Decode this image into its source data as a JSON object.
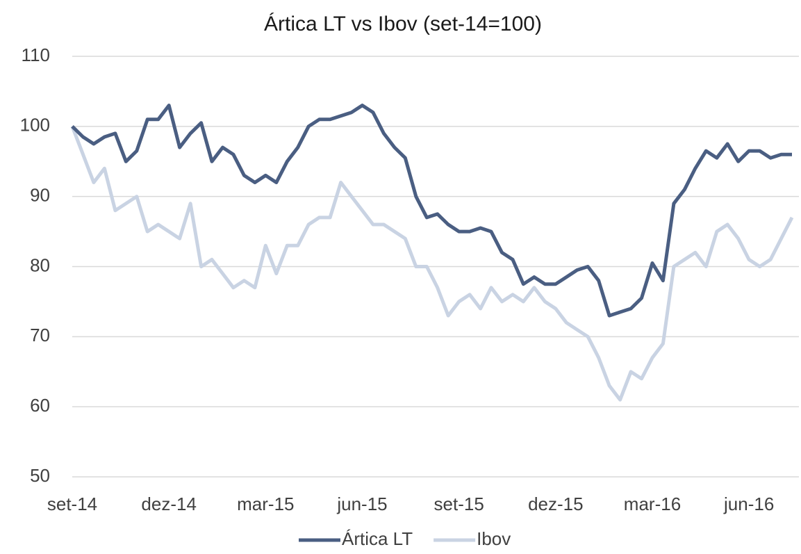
{
  "chart_data": {
    "type": "line",
    "title": "Ártica LT vs Ibov (set-14=100)",
    "categories": [
      "set-14",
      null,
      null,
      null,
      null,
      null,
      null,
      null,
      null,
      "dez-14",
      null,
      null,
      null,
      null,
      null,
      null,
      null,
      null,
      "mar-15",
      null,
      null,
      null,
      null,
      null,
      null,
      null,
      null,
      "jun-15",
      null,
      null,
      null,
      null,
      null,
      null,
      null,
      null,
      "set-15",
      null,
      null,
      null,
      null,
      null,
      null,
      null,
      null,
      "dez-15",
      null,
      null,
      null,
      null,
      null,
      null,
      null,
      null,
      "mar-16",
      null,
      null,
      null,
      null,
      null,
      null,
      null,
      null,
      "jun-16",
      null,
      null,
      null,
      null
    ],
    "series": [
      {
        "name": "Ártica LT",
        "color": "#4a5e82",
        "values": [
          100,
          98.5,
          97.5,
          98.5,
          99,
          95,
          96.5,
          101,
          101,
          103,
          97,
          99,
          100.5,
          95,
          97,
          96,
          93,
          92,
          93,
          92,
          95,
          97,
          100,
          101,
          101,
          101.5,
          102,
          103,
          102,
          99,
          97,
          95.5,
          90,
          87,
          87.5,
          86,
          85,
          85,
          85.5,
          85,
          82,
          81,
          77.5,
          78.5,
          77.5,
          77.5,
          78.5,
          79.5,
          80,
          78,
          73,
          73.5,
          74,
          75.5,
          80.5,
          78,
          89,
          91,
          94,
          96.5,
          95.5,
          97.5,
          95,
          96.5,
          96.5,
          95.5,
          96,
          96
        ]
      },
      {
        "name": "Ibov",
        "color": "#c9d3e3",
        "values": [
          100,
          96,
          92,
          94,
          88,
          89,
          90,
          85,
          86,
          85,
          84,
          89,
          80,
          81,
          79,
          77,
          78,
          77,
          83,
          79,
          83,
          83,
          86,
          87,
          87,
          92,
          90,
          88,
          86,
          86,
          85,
          84,
          80,
          80,
          77,
          73,
          75,
          76,
          74,
          77,
          75,
          76,
          75,
          77,
          75,
          74,
          72,
          71,
          70,
          67,
          63,
          61,
          65,
          64,
          67,
          69,
          80,
          81,
          82,
          80,
          85,
          86,
          84,
          81,
          80,
          81,
          84,
          87
        ]
      }
    ],
    "ylim": [
      50,
      110
    ],
    "yticks": [
      50,
      60,
      70,
      80,
      90,
      100,
      110
    ],
    "grid": true,
    "legend": "bottom"
  }
}
